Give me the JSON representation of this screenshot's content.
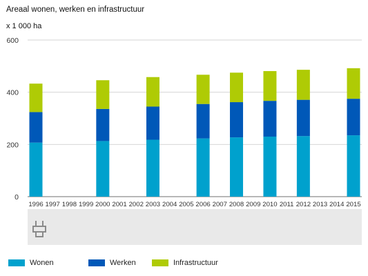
{
  "header": {
    "title": "Areaal wonen, werken en infrastructuur",
    "unit": "x 1 000 ha"
  },
  "colors": {
    "wonen": "#00a1cd",
    "werken": "#0058b8",
    "infrastructuur": "#afcb05",
    "grid": "#d6d6d6",
    "band": "#e9e9e9"
  },
  "logo": {
    "icon": "cbs-logo-icon"
  },
  "chart_data": {
    "type": "bar",
    "stacked": true,
    "categories": [
      "1996",
      "1997",
      "1998",
      "1999",
      "2000",
      "2001",
      "2002",
      "2003",
      "2004",
      "2005",
      "2006",
      "2007",
      "2008",
      "2009",
      "2010",
      "2011",
      "2012",
      "2013",
      "2014",
      "2015"
    ],
    "series": [
      {
        "name": "Wonen",
        "values": [
          207,
          null,
          null,
          null,
          213,
          null,
          null,
          218,
          null,
          null,
          223,
          null,
          227,
          null,
          230,
          null,
          232,
          null,
          null,
          235
        ]
      },
      {
        "name": "Werken",
        "values": [
          117,
          null,
          null,
          null,
          123,
          null,
          null,
          127,
          null,
          null,
          132,
          null,
          135,
          null,
          137,
          null,
          139,
          null,
          null,
          140
        ]
      },
      {
        "name": "Infrastructuur",
        "values": [
          109,
          null,
          null,
          null,
          110,
          null,
          null,
          113,
          null,
          null,
          112,
          null,
          113,
          null,
          114,
          null,
          115,
          null,
          null,
          117
        ]
      }
    ],
    "yticks": [
      0,
      200,
      400,
      600
    ],
    "ylim": [
      0,
      600
    ],
    "grid": true,
    "legend_position": "bottom"
  }
}
